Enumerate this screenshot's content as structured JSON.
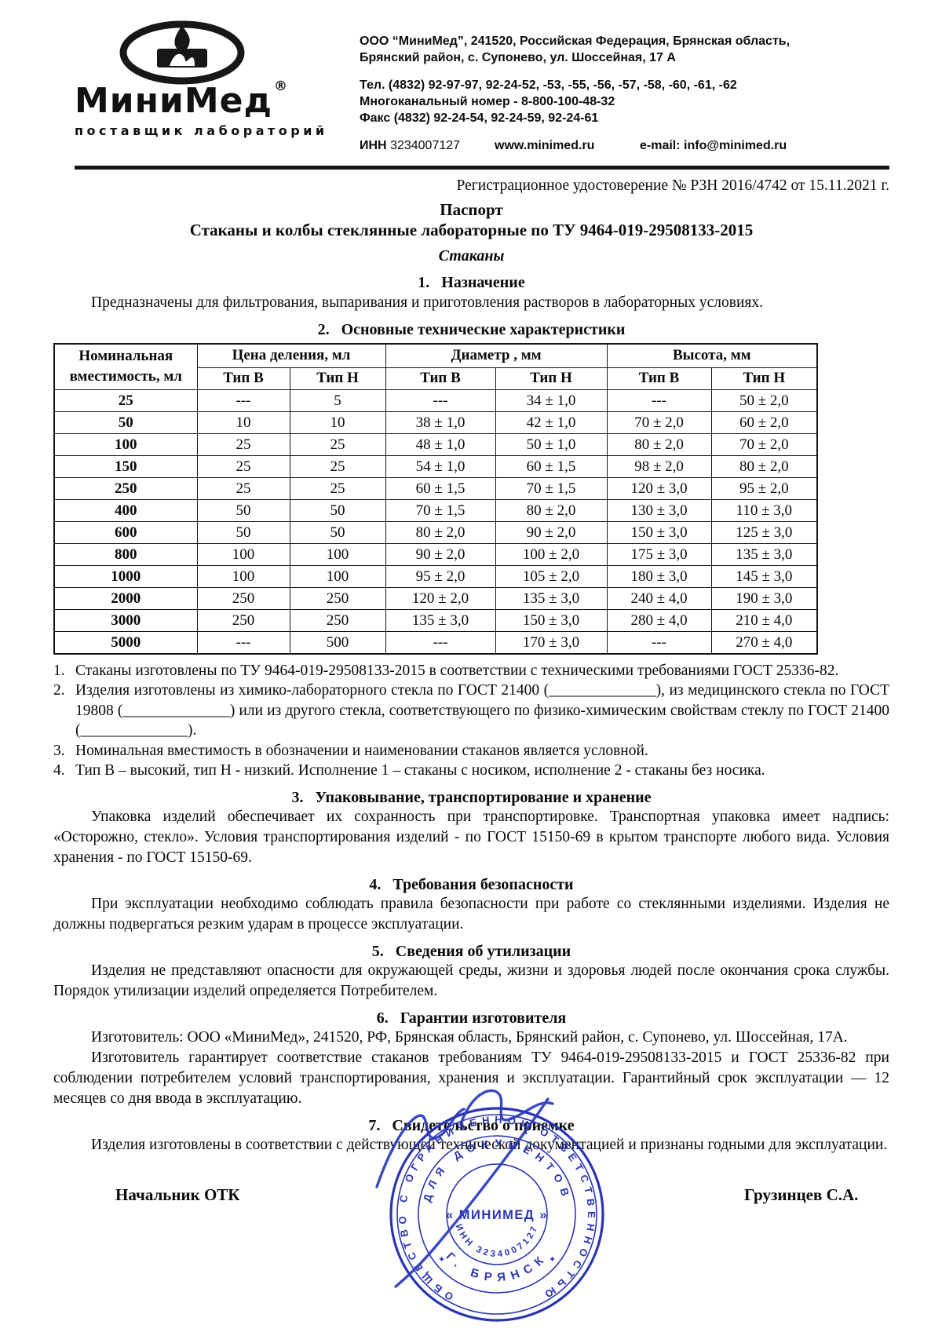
{
  "header": {
    "logo": {
      "brand": "МиниМед",
      "registered_mark": "®",
      "tagline": "поставщик лабораторий",
      "emblem_icon": "candle-flame-ellipse"
    },
    "company_lines": [
      "ООО “МиниМед”, 241520, Российская Федерация, Брянская область,",
      "Брянский район, с. Супонево, ул. Шоссейная, 17 А"
    ],
    "phone_lines": [
      "Тел. (4832) 92-97-97, 92-24-52, -53, -55, -56, -57, -58, -60, -61, -62",
      "Многоканальный номер - 8-800-100-48-32",
      "Факс (4832) 92-24-54, 92-24-59, 92-24-61"
    ],
    "inn_label": "ИНН",
    "inn_value": "3234007127",
    "website": "www.minimed.ru",
    "email": "e-mail: info@minimed.ru"
  },
  "registration_line": "Регистрационное удостоверение № РЗН 2016/4742 от 15.11.2021 г.",
  "doc": {
    "title": "Паспорт",
    "subtitle": "Стаканы и колбы стеклянные лабораторные по ТУ 9464-019-29508133-2015",
    "product": "Стаканы"
  },
  "section1": {
    "heading": "1.   Назначение",
    "text": "Предназначены для фильтрования, выпаривания и приготовления растворов в лабораторных условиях."
  },
  "section2": {
    "heading": "2.   Основные технические характеристики"
  },
  "table": {
    "col1_line1": "Номинальная",
    "col1_line2": "вместимость, мл",
    "groups": [
      {
        "label": "Цена деления, мл"
      },
      {
        "label": "Диаметр , мм"
      },
      {
        "label": "Высота, мм"
      }
    ],
    "subheaders": [
      "Тип В",
      "Тип Н",
      "Тип В",
      "Тип Н",
      "Тип В",
      "Тип Н"
    ],
    "rows": [
      [
        "25",
        "---",
        "5",
        "---",
        "34 ± 1,0",
        "---",
        "50 ± 2,0"
      ],
      [
        "50",
        "10",
        "10",
        "38 ± 1,0",
        "42 ± 1,0",
        "70 ± 2,0",
        "60 ± 2,0"
      ],
      [
        "100",
        "25",
        "25",
        "48 ± 1,0",
        "50 ± 1,0",
        "80 ± 2,0",
        "70 ± 2,0"
      ],
      [
        "150",
        "25",
        "25",
        "54 ± 1,0",
        "60 ± 1,5",
        "98 ± 2,0",
        "80 ± 2,0"
      ],
      [
        "250",
        "25",
        "25",
        "60 ± 1,5",
        "70 ± 1,5",
        "120 ± 3,0",
        "95 ± 2,0"
      ],
      [
        "400",
        "50",
        "50",
        "70 ± 1,5",
        "80 ± 2,0",
        "130 ± 3,0",
        "110 ± 3,0"
      ],
      [
        "600",
        "50",
        "50",
        "80 ± 2,0",
        "90 ± 2,0",
        "150 ± 3,0",
        "125 ± 3,0"
      ],
      [
        "800",
        "100",
        "100",
        "90 ± 2,0",
        "100 ± 2,0",
        "175 ± 3,0",
        "135 ± 3,0"
      ],
      [
        "1000",
        "100",
        "100",
        "95 ± 2,0",
        "105 ± 2,0",
        "180 ± 3,0",
        "145 ± 3,0"
      ],
      [
        "2000",
        "250",
        "250",
        "120 ± 2,0",
        "135 ± 3,0",
        "240 ± 4,0",
        "190 ± 3,0"
      ],
      [
        "3000",
        "250",
        "250",
        "135 ± 3,0",
        "150 ± 3,0",
        "280 ± 4,0",
        "210 ± 4,0"
      ],
      [
        "5000",
        "---",
        "500",
        "---",
        "170 ± 3,0",
        "---",
        "270 ± 4,0"
      ]
    ]
  },
  "notes": [
    {
      "num": "1.",
      "text": "Стаканы изготовлены по ТУ 9464-019-29508133-2015 в соответствии с техническими требованиями ГОСТ 25336-82."
    },
    {
      "num": "2.",
      "text": "Изделия изготовлены из химико-лабораторного стекла по ГОСТ 21400 (______________), из медицинского стекла по ГОСТ 19808 (______________) или из другого стекла, соответствующего по физико-химическим свойствам стеклу по ГОСТ 21400 (______________)."
    },
    {
      "num": "3.",
      "text": "Номинальная вместимость в обозначении и наименовании стаканов является условной."
    },
    {
      "num": "4.",
      "text": "Тип В – высокий, тип Н - низкий. Исполнение 1 – стаканы с носиком, исполнение 2 - стаканы без носика."
    }
  ],
  "section3": {
    "heading": "3.   Упаковывание, транспортирование и хранение",
    "text": "Упаковка изделий обеспечивает их сохранность при транспортировке. Транспортная упаковка имеет надпись: «Осторожно, стекло». Условия транспортирования изделий - по ГОСТ 15150-69 в крытом транспорте любого вида. Условия хранения - по ГОСТ 15150-69."
  },
  "section4": {
    "heading": "4.   Требования безопасности",
    "text": "При эксплуатации необходимо соблюдать правила безопасности при работе со стеклянными изделиями. Изделия не должны подвергаться резким ударам в процессе эксплуатации."
  },
  "section5": {
    "heading": "5.   Сведения об утилизации",
    "text": "Изделия не представляют опасности для окружающей среды, жизни и здоровья людей после окончания срока службы. Порядок утилизации изделий определяется Потребителем."
  },
  "section6": {
    "heading": "6.   Гарантии изготовителя",
    "text1": "Изготовитель: ООО «МиниМед», 241520, РФ, Брянская область, Брянский район, с. Супонево, ул. Шоссейная, 17А.",
    "text2": "Изготовитель гарантирует соответствие стаканов требованиям ТУ 9464-019-29508133-2015 и ГОСТ 25336-82 при соблюдении потребителем условий транспортирования, хранения и эксплуатации. Гарантийный срок эксплуатации — 12 месяцев со дня ввода в эксплуатацию."
  },
  "section7": {
    "heading": "7.   Свидетельство о приемке",
    "text": "Изделия изготовлены в соответствии с действующей технической документацией и признаны годными для эксплуатации."
  },
  "signature": {
    "left_title": "Начальник ОТК",
    "right_name": "Грузинцев С.А."
  },
  "stamp": {
    "color": "#2a35b4",
    "outer_text": "ОБЩЕСТВО С ОГРАНИЧЕННОЙ ОТВЕТСТВЕННОСТЬЮ",
    "purpose": "ДЛЯ ДОКУМЕНТОВ",
    "center_name": "« МИНИМЕД »",
    "inn": "ИНН 3234007127",
    "city": "Г.  БРЯНСК"
  }
}
